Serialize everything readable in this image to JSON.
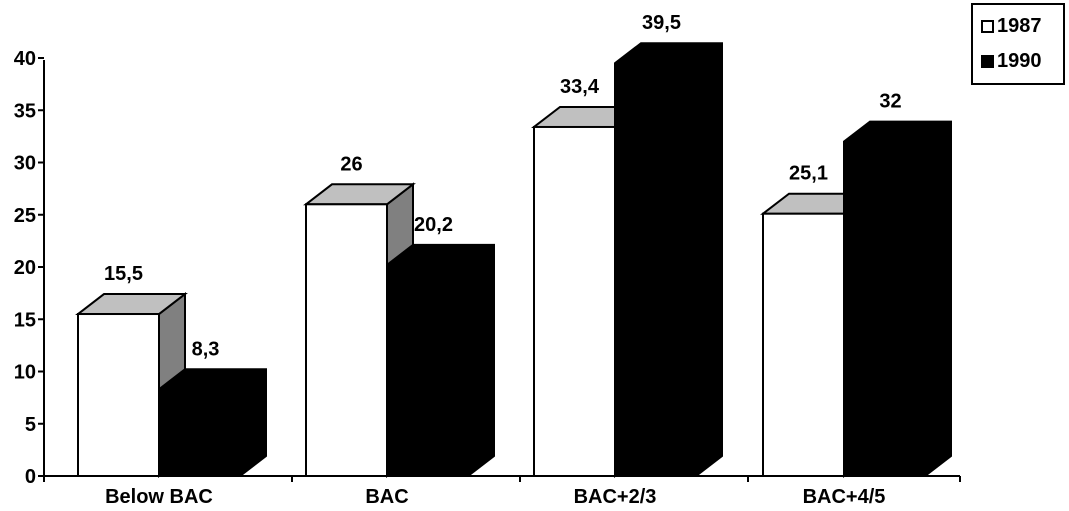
{
  "chart_data": {
    "type": "bar",
    "categories": [
      "Below BAC",
      "BAC",
      "BAC+2/3",
      "BAC+4/5"
    ],
    "series": [
      {
        "name": "1987",
        "values": [
          15.5,
          26,
          33.4,
          25.1
        ],
        "labels": [
          "15,5",
          "26",
          "33,4",
          "25,1"
        ],
        "color": "#ffffff"
      },
      {
        "name": "1990",
        "values": [
          8.3,
          20.2,
          39.5,
          32
        ],
        "labels": [
          "8,3",
          "20,2",
          "39,5",
          "32"
        ],
        "color": "#000000"
      }
    ],
    "yticks": [
      "0",
      "5",
      "10",
      "15",
      "20",
      "25",
      "30",
      "35",
      "40"
    ],
    "ylim": [
      0,
      40
    ],
    "title": "",
    "xlabel": "",
    "ylabel": "",
    "legend_position": "top-right",
    "grid": false,
    "colors": {
      "top_1987": "#c0c0c0",
      "side_1987": "#808080",
      "bar_1990": "#000000",
      "bar_1987": "#ffffff"
    }
  }
}
